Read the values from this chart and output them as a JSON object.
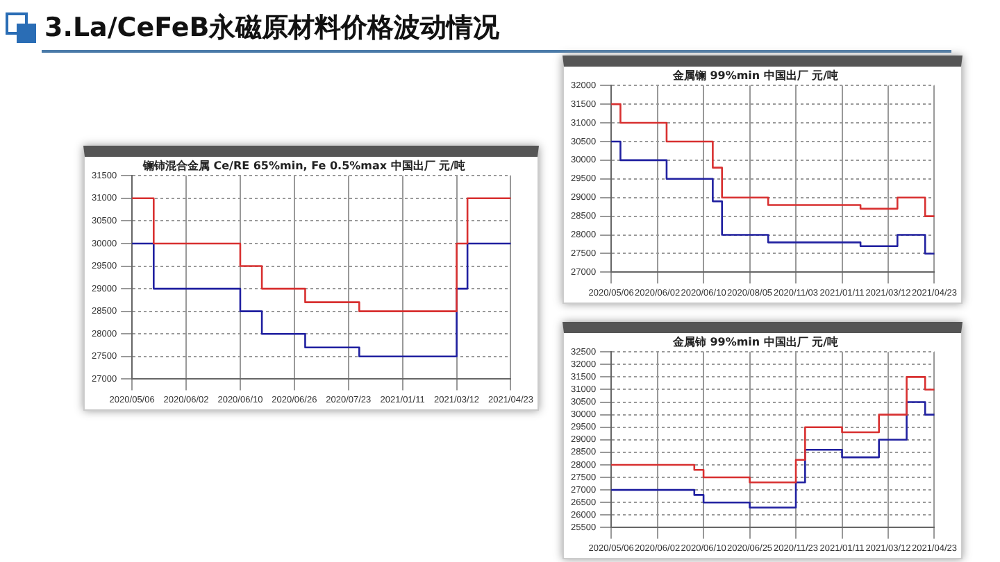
{
  "chart_data": [
    {
      "type": "step",
      "title": "镧铈混合金属 Ce/RE 65%min, Fe 0.5%max 中国出厂 元/吨",
      "annotations": [
        "3.La/CeFeB永磁原材料价格波动情况"
      ],
      "categories": [
        "2020/05/06",
        null,
        null,
        null,
        null,
        "2020/06/02",
        null,
        null,
        null,
        null,
        "2020/06/10",
        null,
        null,
        null,
        null,
        "2020/06/26",
        null,
        null,
        null,
        null,
        "2020/07/23",
        null,
        null,
        null,
        null,
        "2021/01/11",
        null,
        null,
        null,
        null,
        "2021/03/12",
        null,
        null,
        null,
        null,
        "2021/04/23"
      ],
      "series": [
        {
          "color": "#d83030",
          "values": [
            31000,
            31000,
            30000,
            30000,
            30000,
            30000,
            30000,
            30000,
            30000,
            30000,
            29500,
            29500,
            29000,
            29000,
            29000,
            29000,
            28700,
            28700,
            28700,
            28700,
            28700,
            28500,
            28500,
            28500,
            28500,
            28500,
            28500,
            28500,
            28500,
            28500,
            30000,
            31000,
            31000,
            31000,
            31000,
            31000
          ]
        },
        {
          "color": "#2020a0",
          "values": [
            30000,
            30000,
            29000,
            29000,
            29000,
            29000,
            29000,
            29000,
            29000,
            29000,
            28500,
            28500,
            28000,
            28000,
            28000,
            28000,
            27700,
            27700,
            27700,
            27700,
            27700,
            27500,
            27500,
            27500,
            27500,
            27500,
            27500,
            27500,
            27500,
            27500,
            29000,
            30000,
            30000,
            30000,
            30000,
            30000
          ]
        }
      ],
      "ylim": [
        27000,
        31500
      ],
      "yticks": [
        27000,
        27500,
        28000,
        28500,
        29000,
        29500,
        30000,
        30500,
        31000,
        31500
      ],
      "grid": true,
      "legend": false
    },
    {
      "type": "step",
      "title": "金属镧 99%min 中国出厂 元/吨",
      "categories": [
        "2020/05/06",
        null,
        null,
        null,
        null,
        "2020/06/02",
        null,
        null,
        null,
        null,
        "2020/06/10",
        null,
        null,
        null,
        null,
        "2020/08/05",
        null,
        null,
        null,
        null,
        "2020/11/03",
        null,
        null,
        null,
        null,
        "2021/01/11",
        null,
        null,
        null,
        null,
        "2021/03/12",
        null,
        null,
        null,
        null,
        "2021/04/23"
      ],
      "series": [
        {
          "color": "#d83030",
          "values": [
            31500,
            31000,
            31000,
            31000,
            31000,
            31000,
            30500,
            30500,
            30500,
            30500,
            30500,
            29800,
            29000,
            29000,
            29000,
            29000,
            29000,
            28800,
            28800,
            28800,
            28800,
            28800,
            28800,
            28800,
            28800,
            28800,
            28800,
            28700,
            28700,
            28700,
            28700,
            29000,
            29000,
            29000,
            28500,
            28500
          ]
        },
        {
          "color": "#2020a0",
          "values": [
            30500,
            30000,
            30000,
            30000,
            30000,
            30000,
            29500,
            29500,
            29500,
            29500,
            29500,
            28900,
            28000,
            28000,
            28000,
            28000,
            28000,
            27800,
            27800,
            27800,
            27800,
            27800,
            27800,
            27800,
            27800,
            27800,
            27800,
            27700,
            27700,
            27700,
            27700,
            28000,
            28000,
            28000,
            27500,
            27500
          ]
        }
      ],
      "ylim": [
        27000,
        32000
      ],
      "yticks": [
        27000,
        27500,
        28000,
        28500,
        29000,
        29500,
        30000,
        30500,
        31000,
        31500,
        32000
      ],
      "grid": true,
      "legend": false
    },
    {
      "type": "step",
      "title": "金属铈 99%min 中国出厂 元/吨",
      "categories": [
        "2020/05/06",
        null,
        null,
        null,
        null,
        "2020/06/02",
        null,
        null,
        null,
        null,
        "2020/06/10",
        null,
        null,
        null,
        null,
        "2020/06/25",
        null,
        null,
        null,
        null,
        "2020/11/23",
        null,
        null,
        null,
        null,
        "2021/01/11",
        null,
        null,
        null,
        null,
        "2021/03/12",
        null,
        null,
        null,
        null,
        "2021/04/23"
      ],
      "series": [
        {
          "color": "#d83030",
          "values": [
            28000,
            28000,
            28000,
            28000,
            28000,
            28000,
            28000,
            28000,
            28000,
            27800,
            27500,
            27500,
            27500,
            27500,
            27500,
            27300,
            27300,
            27300,
            27300,
            27300,
            28200,
            29500,
            29500,
            29500,
            29500,
            29300,
            29300,
            29300,
            29300,
            30000,
            30000,
            30000,
            31500,
            31500,
            31000,
            31000
          ]
        },
        {
          "color": "#2020a0",
          "values": [
            27000,
            27000,
            27000,
            27000,
            27000,
            27000,
            27000,
            27000,
            27000,
            26800,
            26500,
            26500,
            26500,
            26500,
            26500,
            26300,
            26300,
            26300,
            26300,
            26300,
            27300,
            28600,
            28600,
            28600,
            28600,
            28300,
            28300,
            28300,
            28300,
            29000,
            29000,
            29000,
            30500,
            30500,
            30000,
            30000
          ]
        }
      ],
      "ylim": [
        25500,
        32500
      ],
      "yticks": [
        25500,
        26000,
        26500,
        27000,
        27500,
        28000,
        28500,
        29000,
        29500,
        30000,
        30500,
        31000,
        31500,
        32000,
        32500
      ],
      "grid": true,
      "legend": false
    }
  ]
}
